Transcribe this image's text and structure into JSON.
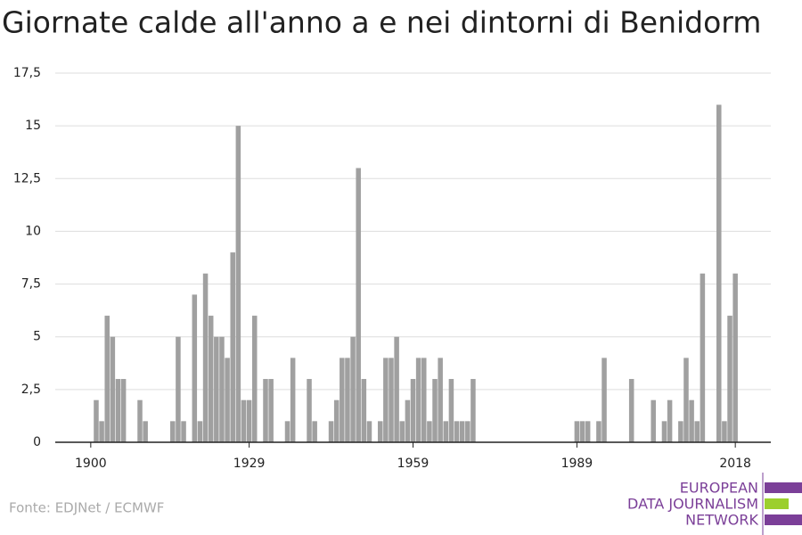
{
  "chart_data": {
    "type": "bar",
    "title": "Giornate calde all'anno a e nei dintorni di Benidorm",
    "x": [
      1901,
      1902,
      1903,
      1904,
      1905,
      1906,
      1907,
      1908,
      1909,
      1910,
      1911,
      1912,
      1913,
      1914,
      1915,
      1916,
      1917,
      1918,
      1919,
      1920,
      1921,
      1922,
      1923,
      1924,
      1925,
      1926,
      1927,
      1928,
      1929,
      1930,
      1931,
      1932,
      1933,
      1934,
      1935,
      1936,
      1937,
      1938,
      1939,
      1940,
      1941,
      1942,
      1943,
      1944,
      1945,
      1946,
      1947,
      1948,
      1949,
      1950,
      1951,
      1952,
      1953,
      1954,
      1955,
      1956,
      1957,
      1958,
      1959,
      1960,
      1961,
      1962,
      1963,
      1964,
      1965,
      1966,
      1967,
      1968,
      1969,
      1970,
      1971,
      1972,
      1973,
      1974,
      1975,
      1976,
      1977,
      1978,
      1979,
      1980,
      1981,
      1982,
      1983,
      1984,
      1985,
      1986,
      1987,
      1988,
      1989,
      1990,
      1991,
      1992,
      1993,
      1994,
      1995,
      1996,
      1997,
      1998,
      1999,
      2000,
      2001,
      2002,
      2003,
      2004,
      2005,
      2006,
      2007,
      2008,
      2009,
      2010,
      2011,
      2012,
      2013,
      2014,
      2015,
      2016,
      2017,
      2018
    ],
    "values": [
      2,
      1,
      6,
      5,
      3,
      3,
      0,
      0,
      2,
      1,
      0,
      0,
      0,
      0,
      1,
      5,
      1,
      0,
      7,
      1,
      8,
      6,
      5,
      5,
      4,
      9,
      15,
      2,
      2,
      6,
      0,
      3,
      3,
      0,
      0,
      1,
      4,
      0,
      0,
      3,
      1,
      0,
      0,
      1,
      2,
      4,
      4,
      5,
      13,
      3,
      1,
      0,
      1,
      4,
      4,
      5,
      1,
      2,
      3,
      4,
      4,
      1,
      3,
      4,
      1,
      3,
      1,
      1,
      1,
      3,
      0,
      0,
      0,
      0,
      0,
      0,
      0,
      0,
      0,
      0,
      0,
      0,
      0,
      0,
      0,
      0,
      0,
      0,
      1,
      1,
      1,
      0,
      1,
      4,
      0,
      0,
      0,
      0,
      3,
      0,
      0,
      0,
      2,
      0,
      1,
      2,
      0,
      1,
      4,
      2,
      1,
      8,
      0,
      0,
      16,
      1,
      6,
      8
    ],
    "color": "#a0a0a0",
    "xlim": [
      1893.5,
      2024.5
    ],
    "xticks": [
      1900,
      1929,
      1959,
      1989,
      2018
    ],
    "ylim": [
      0,
      17.5
    ],
    "yticks": [
      0,
      {
        "value": 2.5,
        "label": "2,5"
      },
      5,
      {
        "value": 7.5,
        "label": "7,5"
      },
      10,
      {
        "value": 12.5,
        "label": "12,5"
      },
      15,
      {
        "value": 17.5,
        "label": "17,5"
      }
    ],
    "grid": true,
    "source": "Fonte: EDJNet / ECMWF"
  },
  "logo": [
    "EUROPEAN",
    "DATA JOURNALISM",
    "NETWORK"
  ]
}
